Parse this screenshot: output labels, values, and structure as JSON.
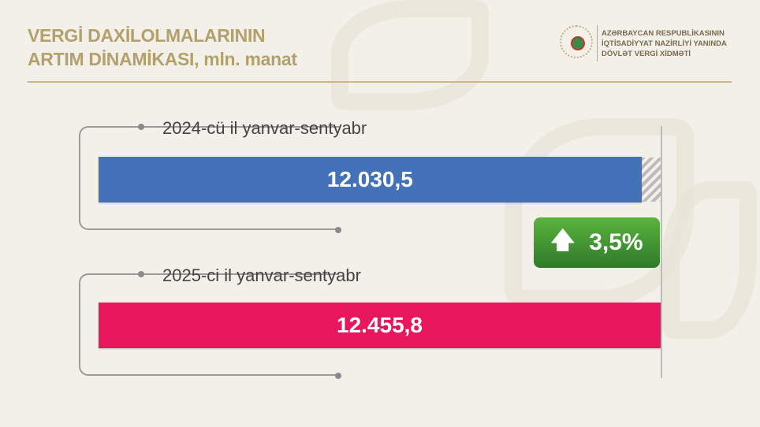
{
  "title": {
    "line1": "VERGİ DAXİLOLMALARININ",
    "line2": "ARTIM DİNAMİKASI, mln. manat"
  },
  "org": {
    "line1": "AZƏRBAYCAN RESPUBLİKASININ",
    "line2": "İQTİSADİYYAT NAZİRLİYİ YANINDA",
    "line3": "DÖVLƏT VERGİ XİDMƏTİ"
  },
  "chart_data": {
    "type": "bar",
    "orientation": "horizontal",
    "categories": [
      "2024-cü il yanvar-sentyabr",
      "2025-ci il yanvar-sentyabr"
    ],
    "values": [
      12030.5,
      12455.8
    ],
    "value_labels": [
      "12.030,5",
      "12.455,8"
    ],
    "colors": [
      "#4472b8",
      "#e8175d"
    ],
    "change": {
      "label": "3,5%",
      "direction": "up",
      "color": "#3f9a34"
    },
    "unit": "mln. manat"
  }
}
